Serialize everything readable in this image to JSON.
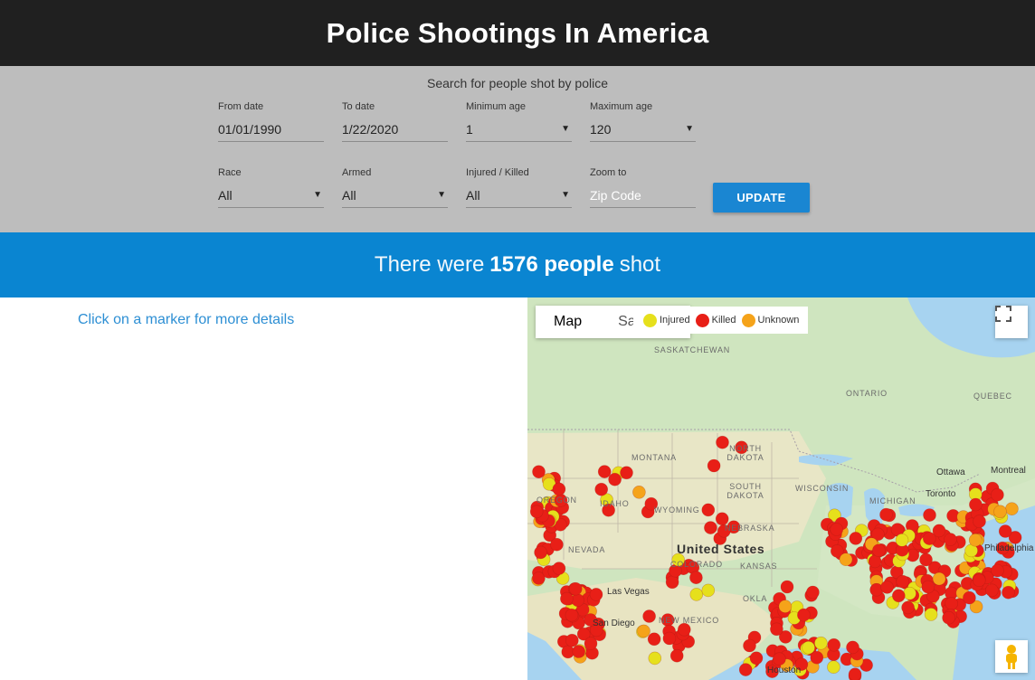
{
  "header": {
    "title": "Police Shootings In America"
  },
  "filters": {
    "subtitle": "Search for people shot by police",
    "from_date": {
      "label": "From date",
      "value": "01/01/1990"
    },
    "to_date": {
      "label": "To date",
      "value": "1/22/2020"
    },
    "min_age": {
      "label": "Minimum age",
      "value": "1"
    },
    "max_age": {
      "label": "Maximum age",
      "value": "120"
    },
    "race": {
      "label": "Race",
      "value": "All"
    },
    "armed": {
      "label": "Armed",
      "value": "All"
    },
    "injured_killed": {
      "label": "Injured / Killed",
      "value": "All"
    },
    "zoom": {
      "label": "Zoom to",
      "placeholder": "Zip Code"
    },
    "update_label": "UPDATE"
  },
  "banner": {
    "prefix": "There were",
    "count": "1576 people",
    "suffix": "shot"
  },
  "details": {
    "hint": "Click on a marker for more details"
  },
  "map": {
    "type_map": "Map",
    "type_satellite": "Satellite",
    "legend": [
      {
        "label": "Injured",
        "color": "#e6e01c"
      },
      {
        "label": "Killed",
        "color": "#e81f17"
      },
      {
        "label": "Unknown",
        "color": "#f5a31a"
      }
    ],
    "region_labels": {
      "saskatchewan": "SASKATCHEWAN",
      "ontario": "ONTARIO",
      "quebec": "QUEBEC",
      "montana": "MONTANA",
      "north_dakota": "NORTH DAKOTA",
      "south_dakota": "SOUTH DAKOTA",
      "wisconsin": "WISCONSIN",
      "michigan": "MICHIGAN",
      "oregon": "OREGON",
      "idaho": "IDAHO",
      "wyoming": "WYOMING",
      "nebraska": "NEBRASKA",
      "nevada": "NEVADA",
      "colorado": "COLORADO",
      "kansas": "KANSAS",
      "oklahoma": "OKLA",
      "new_mexico": "NEW MEXICO"
    },
    "city_labels": {
      "ottawa": "Ottawa",
      "montreal": "Montreal",
      "toronto": "Toronto",
      "las_vegas": "Las Vegas",
      "san_diego": "San Diego",
      "philadelphia": "Philadelphia",
      "houston": "Houston"
    },
    "country_label": "United States",
    "colors": {
      "injured": "#e6e01c",
      "killed": "#e81f17",
      "unknown": "#f5a31a"
    }
  }
}
